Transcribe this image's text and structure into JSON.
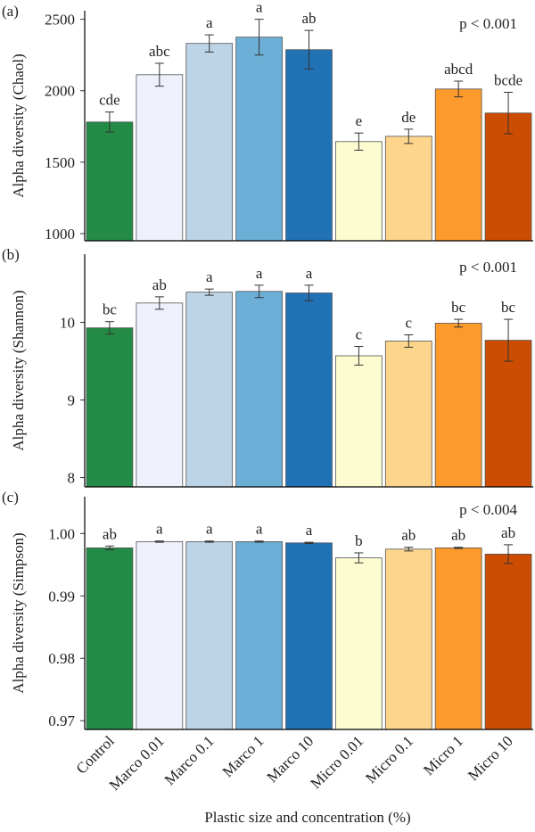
{
  "chart_data": [
    {
      "type": "bar",
      "panel_label": "(a)",
      "y_label": "Alpha diversity (Chaol)",
      "annotation": "p < 0.001",
      "values": [
        1781,
        2112,
        2331,
        2375,
        2287,
        1644,
        1681,
        2012,
        1844
      ],
      "errors": [
        70,
        80,
        60,
        125,
        135,
        60,
        50,
        55,
        145
      ],
      "letters": [
        "cde",
        "abc",
        "a",
        "a",
        "ab",
        "e",
        "de",
        "abcd",
        "bcde"
      ],
      "colors": [
        "#238b45",
        "#eef0fb",
        "#bdd3e6",
        "#6baed6",
        "#2171b5",
        "#fcfcd0",
        "#fdd58c",
        "#fd9a2c",
        "#cc4c02"
      ],
      "ylim": [
        950,
        2560
      ],
      "yticks": [
        1000,
        1500,
        2000,
        2500
      ]
    },
    {
      "type": "bar",
      "panel_label": "(b)",
      "y_label": "Alpha diversity (Shannon)",
      "annotation": "p < 0.001",
      "values": [
        9.93,
        10.25,
        10.39,
        10.4,
        10.38,
        9.57,
        9.76,
        9.99,
        9.77
      ],
      "errors": [
        0.08,
        0.08,
        0.04,
        0.08,
        0.1,
        0.12,
        0.08,
        0.05,
        0.27
      ],
      "letters": [
        "bc",
        "ab",
        "a",
        "a",
        "a",
        "c",
        "c",
        "bc",
        "bc"
      ],
      "colors": [
        "#238b45",
        "#eef0fb",
        "#bdd3e6",
        "#6baed6",
        "#2171b5",
        "#fcfcd0",
        "#fdd58c",
        "#fd9a2c",
        "#cc4c02"
      ],
      "ylim": [
        7.88,
        10.88
      ],
      "yticks": [
        8,
        9,
        10
      ]
    },
    {
      "type": "bar",
      "panel_label": "(c)",
      "y_label": "Alpha diversity (Simpson)",
      "annotation": "p < 0.004",
      "x_label": "Plastic size and concentration (%)",
      "categories": [
        "Control",
        "Marco 0.01",
        "Marco 0.1",
        "Marco 1",
        "Marco 10",
        "Micro 0.01",
        "Micro 0.1",
        "Micro 1",
        "Micro 10"
      ],
      "values": [
        0.9977,
        0.9987,
        0.9987,
        0.9987,
        0.9985,
        0.9961,
        0.9975,
        0.9977,
        0.9967
      ],
      "errors": [
        0.0003,
        0.0001,
        0.0001,
        0.0001,
        0.0001,
        0.0008,
        0.0003,
        0.0001,
        0.0015
      ],
      "letters": [
        "ab",
        "a",
        "a",
        "a",
        "a",
        "b",
        "ab",
        "ab",
        "ab"
      ],
      "colors": [
        "#238b45",
        "#eef0fb",
        "#bdd3e6",
        "#6baed6",
        "#2171b5",
        "#fcfcd0",
        "#fdd58c",
        "#fd9a2c",
        "#cc4c02"
      ],
      "ylim": [
        0.9686,
        1.0059
      ],
      "yticks": [
        {
          "value": 0.97,
          "label": "0.97"
        },
        {
          "value": 0.98,
          "label": "0.98"
        },
        {
          "value": 0.99,
          "label": "0.99"
        },
        {
          "value": 1,
          "label": "1.00"
        }
      ]
    }
  ]
}
